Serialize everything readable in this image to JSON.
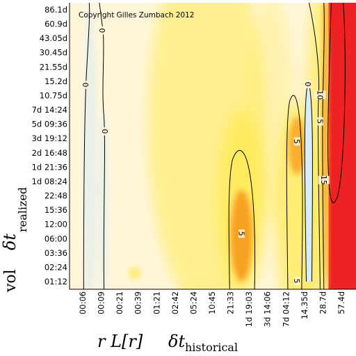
{
  "copyright": "Copyright Gilles Zumbach 2012",
  "chart_data": {
    "type": "heatmap",
    "title": "",
    "y_axis": {
      "label_prefix": "vol",
      "label_symbol": "δt",
      "label_subscript": "realized",
      "ticks": [
        "01:12",
        "02:24",
        "03:36",
        "06:00",
        "12:00",
        "15:36",
        "22:48",
        "1d 08:24",
        "1d 21:36",
        "2d 16:48",
        "3d 19:12",
        "5d 09:36",
        "7d 14:24",
        "10.75d",
        "15.2d",
        "21.55d",
        "30.45d",
        "43.05d",
        "60.9d",
        "86.1d"
      ]
    },
    "x_axis": {
      "label_prefix": "r L[r]",
      "label_symbol": "δt",
      "label_subscript": "historical",
      "ticks": [
        "00:06",
        "00:09",
        "00:21",
        "00:39",
        "01:21",
        "02:42",
        "05:24",
        "10:45",
        "21:33",
        "1d 19:03",
        "3d 14:06",
        "7d 04:12",
        "14.35d",
        "28.7d",
        "57.4d"
      ]
    },
    "contour_levels": [
      0,
      5,
      10,
      15
    ],
    "contour_labels": [
      {
        "text": "0",
        "col": 0.15,
        "row": 13.75
      },
      {
        "text": "0",
        "col": 1.05,
        "row": 17.55
      },
      {
        "text": "0",
        "col": 1.2,
        "row": 10.5
      },
      {
        "text": "0",
        "col": 12.2,
        "row": 13.8
      },
      {
        "text": "5",
        "col": 8.6,
        "row": 3.35
      },
      {
        "text": "5",
        "col": 11.6,
        "row": 9.8
      },
      {
        "text": "5",
        "col": 12.85,
        "row": 11.2
      },
      {
        "text": "5",
        "col": 11.6,
        "row": 0.05
      },
      {
        "text": "10",
        "col": 12.85,
        "row": 13.05
      },
      {
        "text": "15",
        "col": 13.05,
        "row": 7.1
      }
    ],
    "colors": {
      "zero": "#d6ecf6",
      "light": "#fff6da",
      "yellow": "#ffea55",
      "orange": "#f79a1c",
      "high": "#ee2222"
    },
    "grid": false,
    "legend": "none"
  }
}
